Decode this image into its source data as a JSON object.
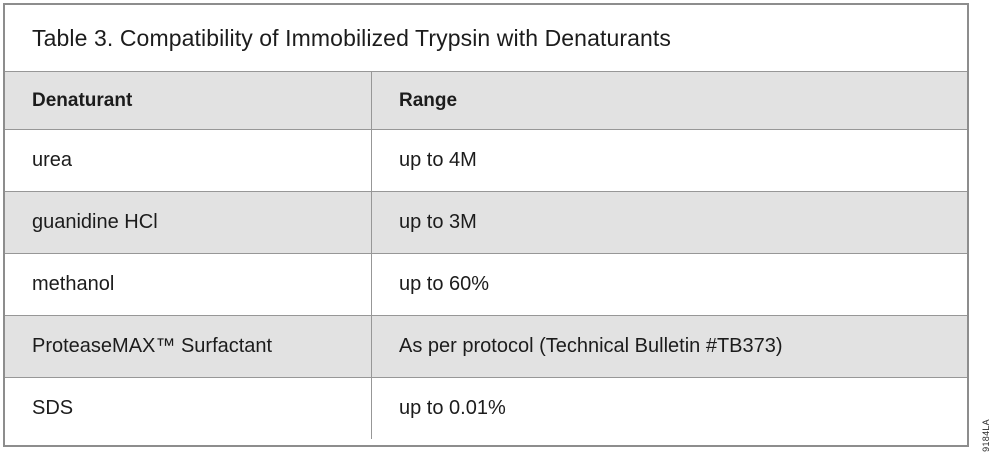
{
  "title": "Table 3. Compatibility of Immobilized Trypsin with Denaturants",
  "table": {
    "columns": [
      "Denaturant",
      "Range"
    ],
    "rows": [
      {
        "denaturant": "urea",
        "range": "up to 4M"
      },
      {
        "denaturant": "guanidine HCl",
        "range": "up to 3M"
      },
      {
        "denaturant": "methanol",
        "range": "up to 60%"
      },
      {
        "denaturant": "ProteaseMAX™ Surfactant",
        "range": "As per protocol (Technical Bulletin #TB373)"
      },
      {
        "denaturant": "SDS",
        "range": "up to 0.01%"
      }
    ]
  },
  "side_label": "9184LA",
  "colors": {
    "row_alt_background": "#e2e2e2",
    "inner_border": "#979797",
    "outer_border": "#8d8d8d",
    "text": "#1c1c1c"
  }
}
